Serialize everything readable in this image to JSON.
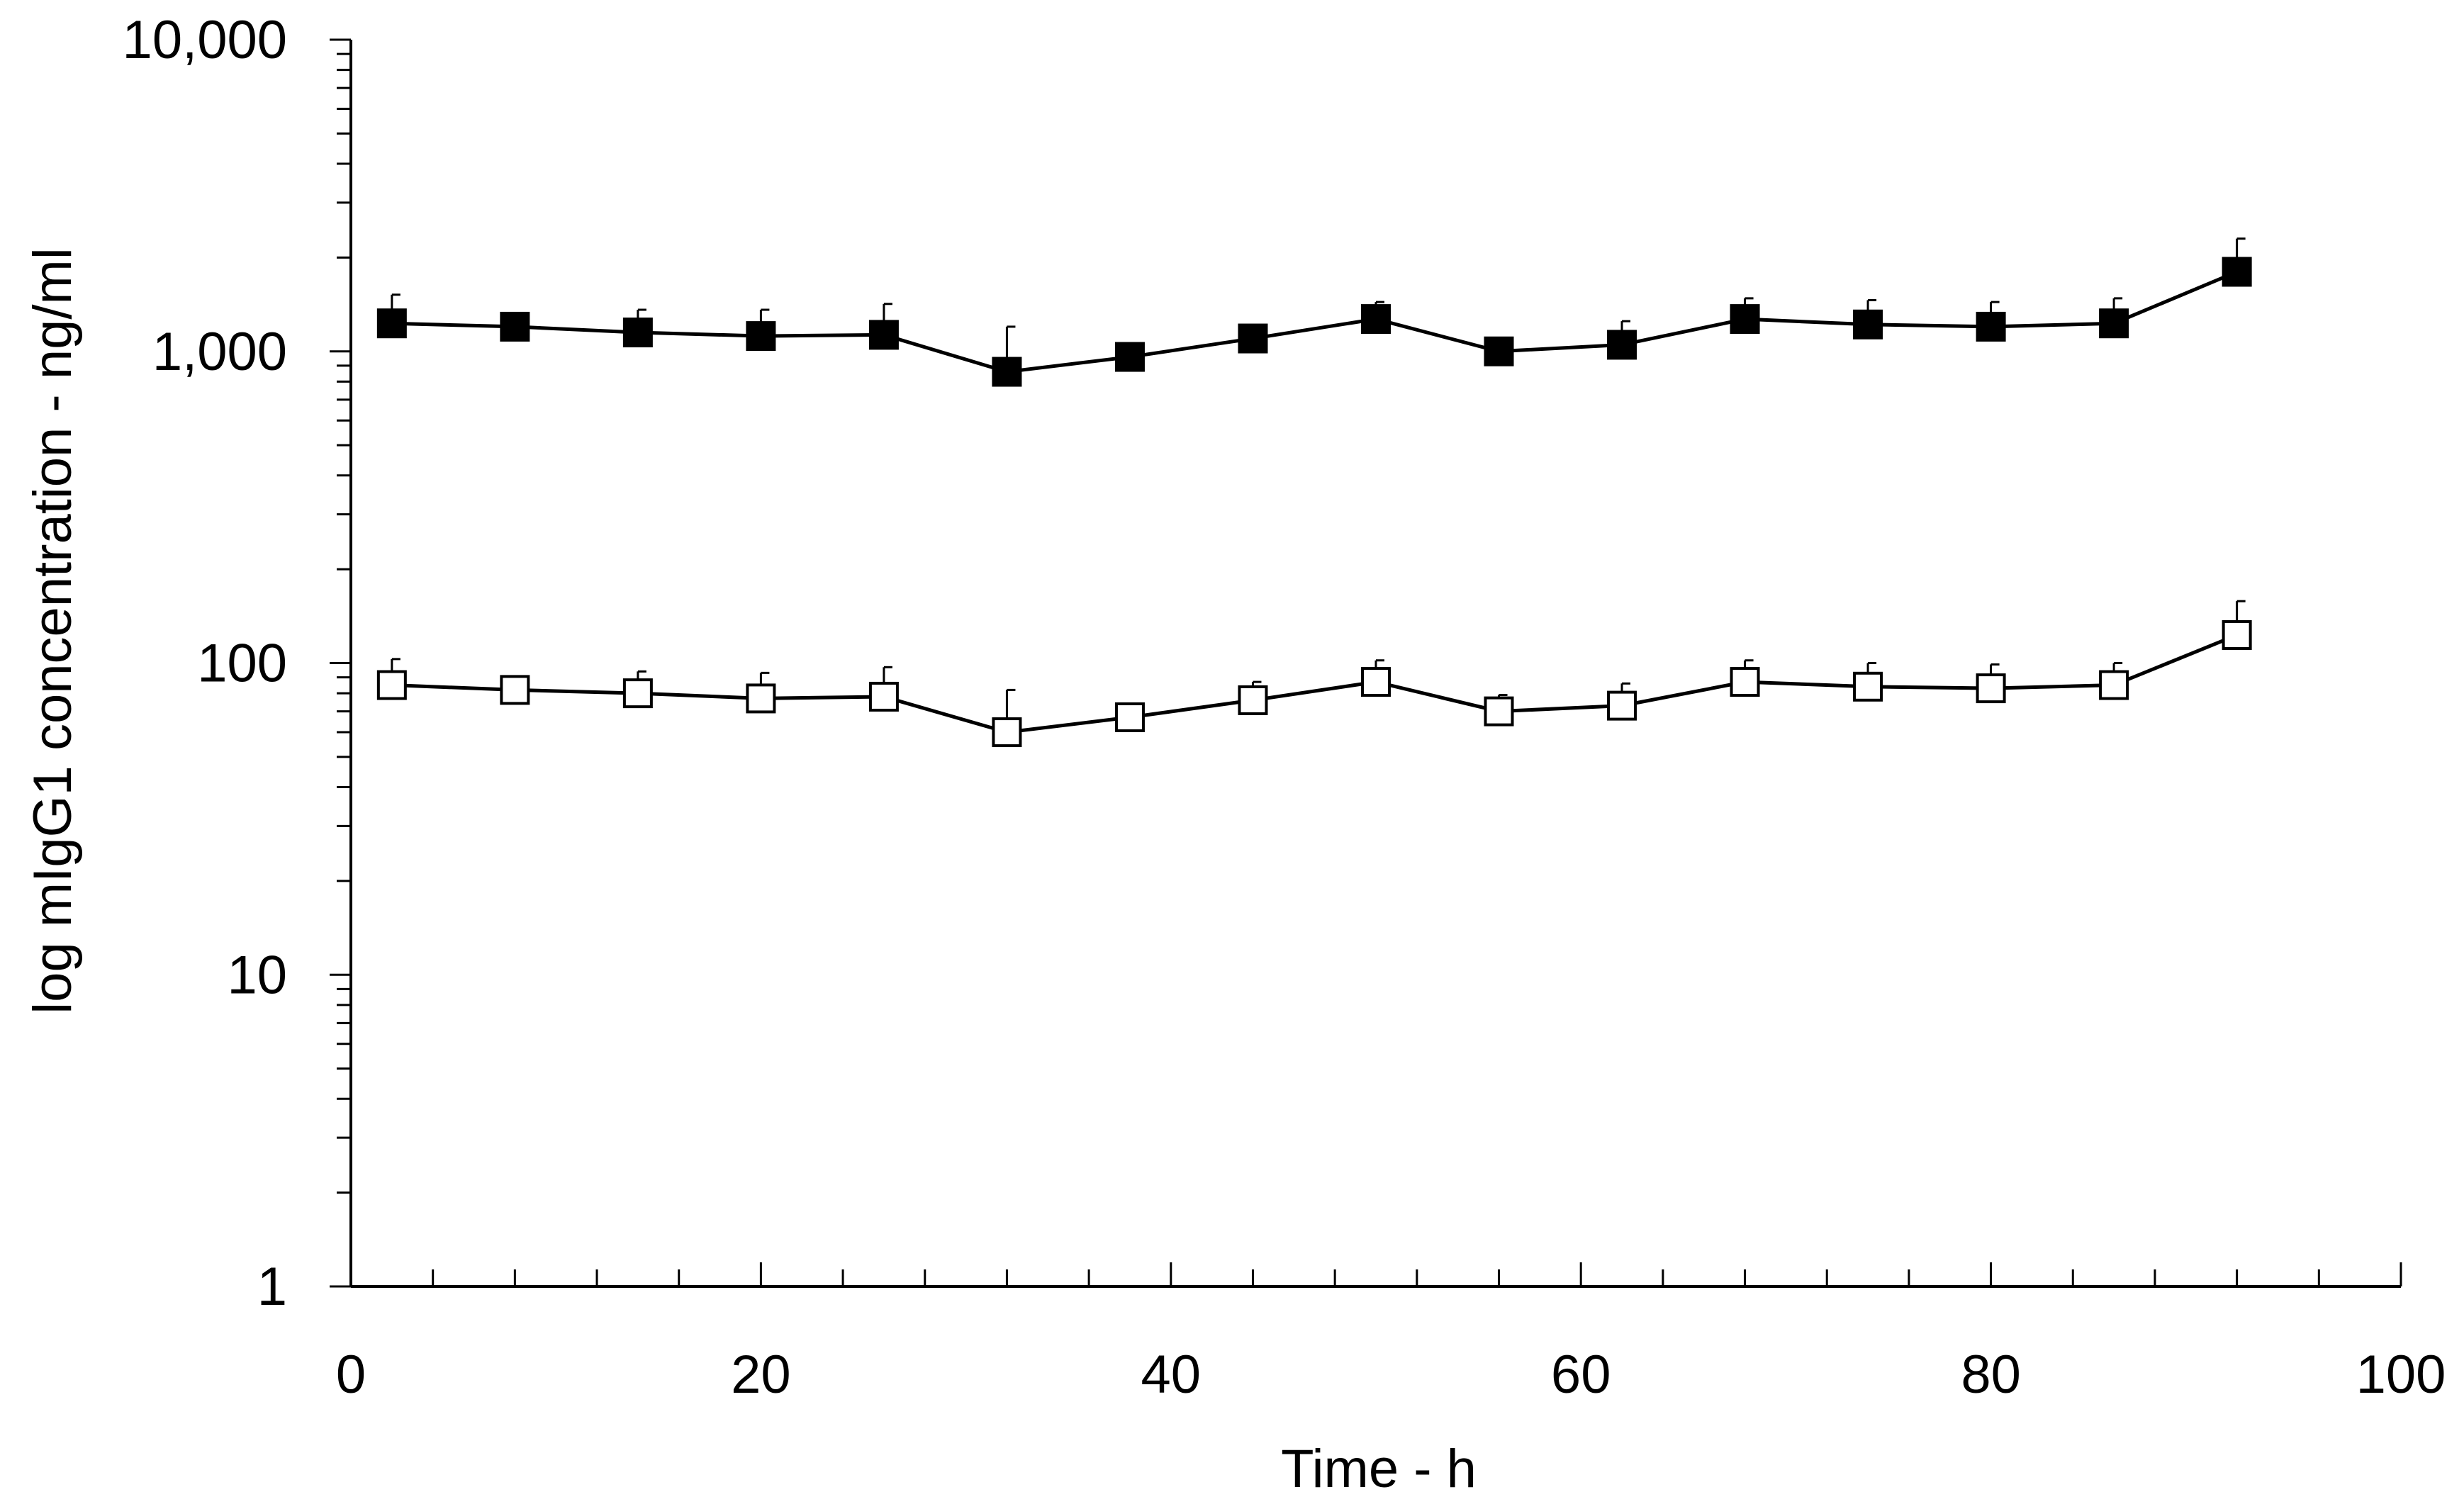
{
  "chart_data": {
    "type": "line",
    "title": "",
    "xlabel": "Time - h",
    "ylabel": "log mIgG1 concentration - ng/ml",
    "xlim": [
      0,
      100
    ],
    "ylim": [
      1,
      10000
    ],
    "yscale": "log",
    "x_ticks": [
      0,
      20,
      40,
      60,
      80,
      100
    ],
    "x_tick_labels": [
      "0",
      "20",
      "40",
      "60",
      "80",
      "100"
    ],
    "y_ticks": [
      1,
      10,
      100,
      1000,
      10000
    ],
    "y_tick_labels": [
      "1",
      "10",
      "100",
      "1,000",
      "10,000"
    ],
    "grid": false,
    "legend": "none",
    "x": [
      2,
      8,
      14,
      20,
      26,
      32,
      38,
      44,
      50,
      56,
      62,
      68,
      74,
      80,
      86,
      92
    ],
    "series": [
      {
        "name": "filled squares",
        "marker": "filled-square",
        "color": "#000000",
        "values": [
          1230,
          1200,
          1150,
          1120,
          1130,
          860,
          960,
          1100,
          1270,
          1000,
          1050,
          1270,
          1220,
          1200,
          1230,
          1800
        ],
        "error_upper": [
          1520,
          1210,
          1360,
          1360,
          1420,
          1200,
          1000,
          1200,
          1440,
          1100,
          1250,
          1480,
          1460,
          1440,
          1480,
          2300
        ]
      },
      {
        "name": "open squares",
        "marker": "open-square",
        "color": "#000000",
        "values": [
          85,
          82,
          80,
          77,
          78,
          60,
          67,
          76,
          87,
          70,
          73,
          87,
          84,
          83,
          85,
          123
        ],
        "error_upper": [
          103,
          88,
          94,
          93,
          97,
          82,
          73,
          87,
          102,
          79,
          86,
          102,
          100,
          99,
          100,
          158
        ]
      }
    ]
  }
}
